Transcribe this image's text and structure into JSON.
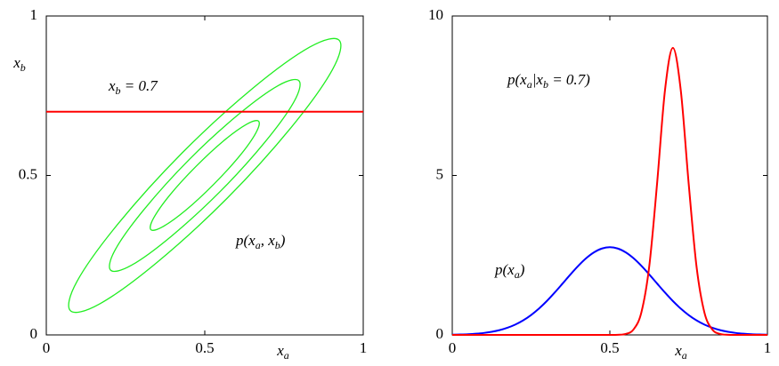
{
  "chart_data": [
    {
      "type": "contour",
      "xlim": [
        0,
        1
      ],
      "ylim": [
        0,
        1
      ],
      "xticks": [
        0,
        0.5,
        1
      ],
      "yticks": [
        0,
        0.5,
        1
      ],
      "xlabel": [
        {
          "t": "x"
        },
        {
          "t": "a",
          "sub": true
        }
      ],
      "ylabel": [
        {
          "t": "x"
        },
        {
          "t": "b",
          "sub": true
        }
      ],
      "annotations": [
        [
          {
            "t": "x"
          },
          {
            "t": "b",
            "sub": true
          },
          {
            "t": " = 0.7"
          }
        ],
        [
          {
            "t": "p(x"
          },
          {
            "t": "a",
            "sub": true
          },
          {
            "t": ", x"
          },
          {
            "t": "b",
            "sub": true
          },
          {
            "t": ")"
          }
        ]
      ],
      "series": [
        {
          "color": "#22ee22",
          "closed": true,
          "x": [
            0.924,
            0.832,
            0.651,
            0.429,
            0.227,
            0.097,
            0.076,
            0.168,
            0.349,
            0.571,
            0.773,
            0.903
          ],
          "y": [
            0.924,
            0.903,
            0.773,
            0.571,
            0.349,
            0.168,
            0.076,
            0.097,
            0.227,
            0.429,
            0.651,
            0.832
          ]
        },
        {
          "color": "#22ee22",
          "closed": true,
          "x": [
            0.797,
            0.732,
            0.606,
            0.451,
            0.309,
            0.218,
            0.203,
            0.268,
            0.394,
            0.55,
            0.691,
            0.782
          ],
          "y": [
            0.797,
            0.782,
            0.691,
            0.55,
            0.394,
            0.268,
            0.203,
            0.218,
            0.309,
            0.451,
            0.606,
            0.732
          ]
        },
        {
          "color": "#22ee22",
          "closed": true,
          "x": [
            0.67,
            0.633,
            0.56,
            0.472,
            0.391,
            0.339,
            0.33,
            0.367,
            0.44,
            0.528,
            0.609,
            0.661
          ],
          "y": [
            0.67,
            0.661,
            0.609,
            0.528,
            0.44,
            0.367,
            0.33,
            0.339,
            0.391,
            0.472,
            0.56,
            0.633
          ]
        },
        {
          "color": "#ff0000",
          "closed": false,
          "x": [
            0,
            1
          ],
          "y": [
            0.7,
            0.7
          ]
        }
      ]
    },
    {
      "type": "line",
      "xlim": [
        0,
        1
      ],
      "ylim": [
        0,
        10
      ],
      "xticks": [
        0,
        0.5,
        1
      ],
      "yticks": [
        0,
        5,
        10
      ],
      "xlabel": [
        {
          "t": "x"
        },
        {
          "t": "a",
          "sub": true
        }
      ],
      "annotations": [
        [
          {
            "t": "p(x"
          },
          {
            "t": "a",
            "sub": true
          },
          {
            "t": "|x"
          },
          {
            "t": "b",
            "sub": true
          },
          {
            "t": " = 0.7)"
          }
        ],
        [
          {
            "t": "p(x"
          },
          {
            "t": "a",
            "sub": true
          },
          {
            "t": ")"
          }
        ]
      ],
      "x": [
        0,
        0.025,
        0.05,
        0.075,
        0.1,
        0.125,
        0.15,
        0.175,
        0.2,
        0.225,
        0.25,
        0.275,
        0.3,
        0.325,
        0.35,
        0.375,
        0.4,
        0.425,
        0.45,
        0.475,
        0.5,
        0.525,
        0.55,
        0.575,
        0.6,
        0.625,
        0.65,
        0.675,
        0.7,
        0.725,
        0.75,
        0.775,
        0.8,
        0.825,
        0.85,
        0.875,
        0.9,
        0.925,
        0.95,
        0.975,
        1
      ],
      "series": [
        {
          "color": "#0000ff",
          "values": [
            0.007,
            0.013,
            0.022,
            0.038,
            0.061,
            0.097,
            0.149,
            0.223,
            0.323,
            0.455,
            0.622,
            0.825,
            1.062,
            1.328,
            1.61,
            1.896,
            2.168,
            2.406,
            2.591,
            2.709,
            2.75,
            2.709,
            2.591,
            2.406,
            2.168,
            1.896,
            1.61,
            1.328,
            1.062,
            0.825,
            0.622,
            0.455,
            0.323,
            0.223,
            0.149,
            0.097,
            0.061,
            0.038,
            0.022,
            0.013,
            0.007
          ]
        },
        {
          "color": "#ff0000",
          "values": [
            0,
            0,
            0,
            0,
            0,
            0,
            0,
            0,
            0,
            0,
            0,
            0,
            0,
            0,
            0,
            0,
            0,
            0,
            0,
            0,
            0,
            0.004,
            0.029,
            0.168,
            0.704,
            2.147,
            4.76,
            7.675,
            9,
            7.675,
            4.76,
            2.147,
            0.704,
            0.168,
            0.029,
            0.004,
            0,
            0,
            0,
            0,
            0
          ]
        }
      ]
    }
  ]
}
